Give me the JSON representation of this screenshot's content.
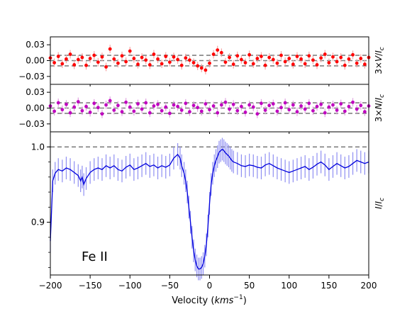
{
  "chart_data": [
    {
      "type": "scatter",
      "panel": "stokes-v",
      "ylabel_parts": [
        "3×",
        "V",
        "/",
        "I",
        "c"
      ],
      "ylim": [
        -0.045,
        0.045
      ],
      "yticks": [
        "0.03",
        "0.00",
        "−0.03"
      ],
      "ytick_values": [
        0.03,
        0.0,
        -0.03
      ],
      "xlim": [
        -200,
        200
      ],
      "dashed_lines": [
        0.01,
        0.0,
        -0.01
      ],
      "grid": false,
      "series": [
        {
          "color": "#ff0000",
          "error_color": "#f5a3a3",
          "x": [
            -200,
            -195,
            -190,
            -185,
            -180,
            -175,
            -170,
            -165,
            -160,
            -155,
            -150,
            -145,
            -140,
            -135,
            -130,
            -125,
            -120,
            -115,
            -110,
            -105,
            -100,
            -95,
            -90,
            -85,
            -80,
            -75,
            -70,
            -65,
            -60,
            -55,
            -50,
            -45,
            -40,
            -35,
            -30,
            -25,
            -20,
            -15,
            -10,
            -5,
            0,
            5,
            10,
            15,
            20,
            25,
            30,
            35,
            40,
            45,
            50,
            55,
            60,
            65,
            70,
            75,
            80,
            85,
            90,
            95,
            100,
            105,
            110,
            115,
            120,
            125,
            130,
            135,
            140,
            145,
            150,
            155,
            160,
            165,
            170,
            175,
            180,
            185,
            190,
            195,
            200
          ],
          "y": [
            0.005,
            -0.004,
            0.008,
            -0.006,
            0.003,
            0.012,
            -0.008,
            0.002,
            0.006,
            -0.009,
            0.004,
            0.01,
            -0.003,
            0.007,
            -0.012,
            0.022,
            0.003,
            -0.005,
            0.009,
            -0.002,
            0.018,
            0.004,
            -0.007,
            0.006,
            0.001,
            -0.008,
            0.012,
            0.003,
            -0.006,
            0.008,
            -0.003,
            0.007,
            0.002,
            -0.009,
            0.005,
            0.001,
            -0.004,
            -0.01,
            -0.014,
            -0.018,
            -0.005,
            0.012,
            0.02,
            0.015,
            -0.003,
            0.006,
            -0.007,
            0.009,
            0.002,
            -0.004,
            0.011,
            -0.006,
            0.004,
            0.008,
            -0.009,
            0.006,
            0.002,
            -0.005,
            0.01,
            -0.002,
            0.004,
            -0.007,
            0.008,
            0.003,
            -0.006,
            0.009,
            0.001,
            -0.008,
            0.005,
            0.012,
            -0.004,
            0.007,
            -0.002,
            0.006,
            -0.009,
            0.003,
            0.011,
            -0.005,
            0.004,
            -0.007,
            0.006
          ],
          "yerr": 0.008
        }
      ]
    },
    {
      "type": "scatter",
      "panel": "null",
      "ylabel_parts": [
        "3×",
        "N",
        "/",
        "I",
        "c"
      ],
      "ylim": [
        -0.045,
        0.045
      ],
      "yticks": [
        "0.03",
        "0.00",
        "−0.03"
      ],
      "ytick_values": [
        0.03,
        0.0,
        -0.03
      ],
      "xlim": [
        -200,
        200
      ],
      "dashed_lines": [
        0.01,
        0.0,
        -0.01
      ],
      "grid": false,
      "series": [
        {
          "color": "#bf00bf",
          "error_color": "#e0a0e0",
          "x": [
            -200,
            -195,
            -190,
            -185,
            -180,
            -175,
            -170,
            -165,
            -160,
            -155,
            -150,
            -145,
            -140,
            -135,
            -130,
            -125,
            -120,
            -115,
            -110,
            -105,
            -100,
            -95,
            -90,
            -85,
            -80,
            -75,
            -70,
            -65,
            -60,
            -55,
            -50,
            -45,
            -40,
            -35,
            -30,
            -25,
            -20,
            -15,
            -10,
            -5,
            0,
            5,
            10,
            15,
            20,
            25,
            30,
            35,
            40,
            45,
            50,
            55,
            60,
            65,
            70,
            75,
            80,
            85,
            90,
            95,
            100,
            105,
            110,
            115,
            120,
            125,
            130,
            135,
            140,
            145,
            150,
            155,
            160,
            165,
            170,
            175,
            180,
            185,
            190,
            195,
            200
          ],
          "y": [
            0.004,
            -0.006,
            0.01,
            -0.003,
            0.007,
            -0.009,
            0.002,
            0.012,
            -0.005,
            0.003,
            -0.008,
            0.009,
            0.001,
            -0.011,
            0.006,
            0.014,
            -0.004,
            0.005,
            -0.007,
            0.011,
            0.002,
            -0.006,
            0.008,
            -0.002,
            0.01,
            -0.009,
            0.004,
            0.007,
            -0.005,
            0.002,
            -0.01,
            0.006,
            0.003,
            -0.004,
            0.009,
            -0.007,
            0.005,
            0.001,
            -0.006,
            0.008,
            -0.003,
            0.004,
            -0.009,
            0.006,
            0.011,
            -0.002,
            0.007,
            -0.005,
            0.003,
            -0.008,
            0.006,
            0.002,
            -0.011,
            0.009,
            -0.004,
            0.005,
            0.008,
            -0.006,
            0.001,
            0.01,
            -0.003,
            0.006,
            -0.007,
            0.004,
            -0.002,
            0.009,
            -0.005,
            0.003,
            0.007,
            -0.009,
            0.002,
            0.006,
            -0.004,
            0.008,
            -0.006,
            0.003,
            0.011,
            -0.002,
            0.005,
            -0.007,
            0.004
          ],
          "yerr": 0.008
        }
      ]
    },
    {
      "type": "line",
      "panel": "stokes-i",
      "ylabel_parts": [
        "I",
        "/",
        "I",
        "c"
      ],
      "ylim": [
        0.83,
        1.02
      ],
      "yticks": [
        "1.0",
        "0.9"
      ],
      "ytick_values": [
        1.0,
        0.9
      ],
      "xlim": [
        -200,
        200
      ],
      "xticks": [
        "−200",
        "−150",
        "−100",
        "−50",
        "0",
        "50",
        "100",
        "150",
        "200"
      ],
      "xtick_values": [
        -200,
        -150,
        -100,
        -50,
        0,
        50,
        100,
        150,
        200
      ],
      "xlabel_parts": [
        "Velocity (",
        "kms",
        "−1",
        ")"
      ],
      "dashed_lines": [
        1.0
      ],
      "annotation": "Fe II",
      "grid": false,
      "series": [
        {
          "color": "#0000dd",
          "error_color": "#8f8ff2",
          "x": [
            -200,
            -197,
            -194,
            -190,
            -185,
            -180,
            -175,
            -170,
            -165,
            -162,
            -160,
            -158,
            -155,
            -150,
            -145,
            -140,
            -135,
            -130,
            -125,
            -120,
            -115,
            -110,
            -105,
            -100,
            -95,
            -90,
            -85,
            -80,
            -75,
            -70,
            -65,
            -60,
            -55,
            -50,
            -45,
            -40,
            -37,
            -35,
            -32,
            -30,
            -28,
            -26,
            -24,
            -22,
            -20,
            -18,
            -16,
            -14,
            -12,
            -10,
            -8,
            -6,
            -4,
            -2,
            0,
            2,
            4,
            6,
            8,
            10,
            12,
            14,
            16,
            18,
            20,
            22,
            24,
            26,
            28,
            30,
            35,
            40,
            45,
            50,
            55,
            60,
            65,
            70,
            75,
            80,
            85,
            90,
            95,
            100,
            105,
            110,
            115,
            120,
            125,
            130,
            135,
            140,
            145,
            150,
            155,
            160,
            165,
            170,
            175,
            180,
            185,
            190,
            195,
            200
          ],
          "y": [
            0.875,
            0.955,
            0.965,
            0.97,
            0.968,
            0.972,
            0.97,
            0.966,
            0.962,
            0.955,
            0.96,
            0.95,
            0.958,
            0.966,
            0.97,
            0.972,
            0.97,
            0.975,
            0.972,
            0.975,
            0.97,
            0.968,
            0.973,
            0.976,
            0.97,
            0.972,
            0.975,
            0.978,
            0.974,
            0.976,
            0.972,
            0.975,
            0.973,
            0.976,
            0.985,
            0.99,
            0.985,
            0.975,
            0.965,
            0.955,
            0.94,
            0.92,
            0.9,
            0.88,
            0.862,
            0.85,
            0.842,
            0.838,
            0.838,
            0.84,
            0.845,
            0.855,
            0.87,
            0.895,
            0.925,
            0.95,
            0.965,
            0.975,
            0.982,
            0.987,
            0.993,
            0.995,
            0.997,
            0.995,
            0.992,
            0.99,
            0.988,
            0.985,
            0.982,
            0.98,
            0.978,
            0.975,
            0.974,
            0.976,
            0.975,
            0.973,
            0.972,
            0.976,
            0.978,
            0.975,
            0.972,
            0.97,
            0.968,
            0.966,
            0.968,
            0.97,
            0.972,
            0.974,
            0.97,
            0.973,
            0.977,
            0.98,
            0.976,
            0.97,
            0.974,
            0.978,
            0.975,
            0.972,
            0.974,
            0.978,
            0.982,
            0.98,
            0.978,
            0.98
          ],
          "yerr": 0.015
        }
      ]
    }
  ]
}
